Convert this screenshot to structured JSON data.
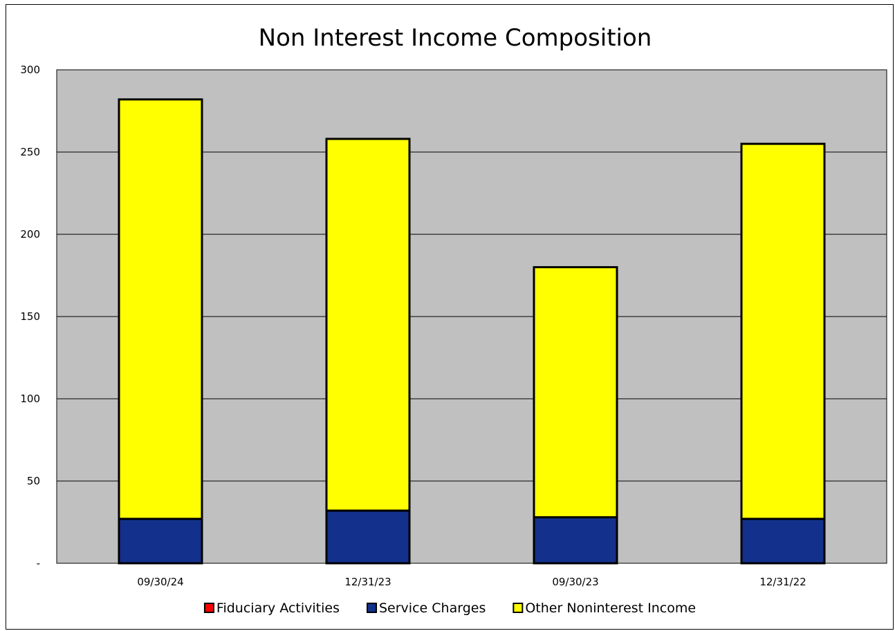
{
  "chart_data": {
    "type": "bar",
    "stacked": true,
    "title": "Non Interest Income Composition",
    "xlabel": "",
    "ylabel": "",
    "categories": [
      "09/30/24",
      "12/31/23",
      "09/30/23",
      "12/31/22"
    ],
    "ylim": [
      0,
      300
    ],
    "yticks": [
      0,
      50,
      100,
      150,
      200,
      250,
      300
    ],
    "ytick_labels": [
      "-",
      "50",
      "100",
      "150",
      "200",
      "250",
      "300"
    ],
    "grid": true,
    "legend_position": "bottom",
    "plot_background": "#C0C0C0",
    "series": [
      {
        "name": "Fiduciary Activities",
        "color": "#FF0000",
        "values": [
          0,
          0,
          0,
          0
        ]
      },
      {
        "name": "Service Charges",
        "color": "#13318C",
        "values": [
          27,
          32,
          28,
          27
        ]
      },
      {
        "name": "Other Noninterest Income",
        "color": "#FFFF00",
        "values": [
          255,
          226,
          152,
          228
        ]
      }
    ]
  }
}
